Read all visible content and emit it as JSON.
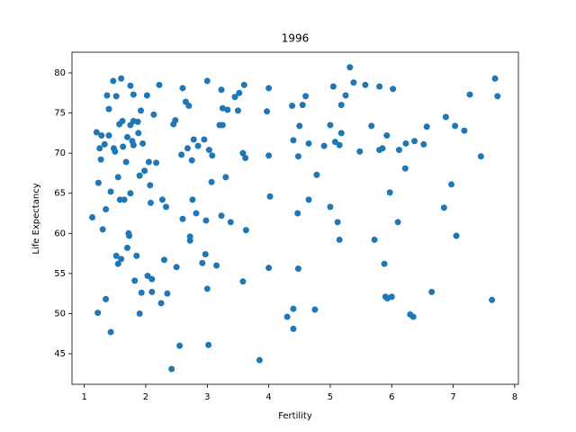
{
  "chart_data": {
    "type": "scatter",
    "title": "1996",
    "x_label": "Fertility",
    "y_label": "Life Expectancy",
    "color": "#1f77b4",
    "grid": false,
    "xlim": [
      0.8,
      8.06
    ],
    "ylim": [
      41.19,
      82.58
    ],
    "xticks": [
      1,
      2,
      3,
      4,
      5,
      6,
      7,
      8
    ],
    "yticks": [
      45,
      50,
      55,
      60,
      65,
      70,
      75,
      80
    ],
    "x": [
      1.13,
      1.2,
      1.22,
      1.23,
      1.25,
      1.27,
      1.28,
      1.3,
      1.33,
      1.35,
      1.35,
      1.37,
      1.4,
      1.4,
      1.43,
      1.43,
      1.47,
      1.48,
      1.5,
      1.52,
      1.52,
      1.55,
      1.55,
      1.57,
      1.58,
      1.6,
      1.6,
      1.62,
      1.63,
      1.65,
      1.68,
      1.7,
      1.7,
      1.72,
      1.73,
      1.75,
      1.75,
      1.75,
      1.78,
      1.8,
      1.8,
      1.8,
      1.82,
      1.85,
      1.87,
      1.88,
      1.9,
      1.9,
      1.92,
      1.93,
      1.95,
      1.98,
      2.02,
      2.03,
      2.05,
      2.07,
      2.08,
      2.1,
      2.1,
      2.13,
      2.17,
      2.22,
      2.25,
      2.27,
      2.3,
      2.33,
      2.35,
      2.42,
      2.45,
      2.48,
      2.5,
      2.55,
      2.58,
      2.6,
      2.6,
      2.65,
      2.68,
      2.7,
      2.72,
      2.72,
      2.75,
      2.76,
      2.78,
      2.82,
      2.85,
      2.92,
      2.95,
      2.97,
      2.98,
      3.0,
      3.0,
      3.02,
      3.03,
      3.07,
      3.08,
      3.15,
      3.2,
      3.23,
      3.23,
      3.25,
      3.25,
      3.3,
      3.33,
      3.38,
      3.45,
      3.5,
      3.52,
      3.58,
      3.58,
      3.6,
      3.62,
      3.63,
      3.85,
      3.97,
      4.0,
      4.0,
      4.02,
      4.0,
      4.3,
      4.38,
      4.4,
      4.4,
      4.4,
      4.47,
      4.48,
      4.48,
      4.5,
      4.55,
      4.6,
      4.65,
      4.65,
      4.75,
      4.78,
      4.9,
      5.0,
      5.0,
      5.05,
      5.08,
      5.12,
      5.15,
      5.15,
      5.18,
      5.18,
      5.25,
      5.32,
      5.38,
      5.48,
      5.57,
      5.67,
      5.72,
      5.8,
      5.8,
      5.85,
      5.88,
      5.9,
      5.92,
      5.93,
      5.97,
      6.0,
      6.02,
      6.1,
      6.12,
      6.22,
      6.23,
      6.3,
      6.35,
      6.37,
      6.52,
      6.57,
      6.65,
      6.85,
      6.88,
      6.97,
      7.03,
      7.05,
      7.18,
      7.27,
      7.45,
      7.63,
      7.68,
      7.72
    ],
    "values": [
      62.0,
      72.6,
      50.1,
      66.3,
      70.6,
      69.2,
      72.2,
      60.5,
      71.1,
      51.8,
      63.0,
      77.2,
      72.2,
      75.5,
      47.7,
      65.2,
      79.0,
      70.6,
      70.2,
      77.1,
      57.2,
      56.2,
      67.0,
      73.6,
      64.2,
      79.3,
      56.8,
      74.0,
      70.8,
      64.2,
      68.9,
      72.0,
      58.2,
      60.0,
      59.7,
      78.4,
      73.5,
      65.0,
      71.5,
      77.3,
      71.0,
      74.0,
      54.1,
      57.2,
      73.9,
      72.5,
      50.0,
      67.2,
      75.3,
      52.6,
      71.2,
      67.8,
      77.2,
      54.7,
      68.9,
      66.0,
      63.8,
      54.3,
      52.7,
      74.8,
      68.8,
      78.5,
      51.3,
      64.2,
      56.7,
      63.3,
      52.5,
      43.1,
      73.6,
      74.1,
      55.8,
      46.0,
      69.8,
      78.1,
      61.8,
      76.4,
      70.6,
      75.9,
      59.1,
      59.6,
      69.1,
      64.2,
      71.7,
      62.5,
      70.9,
      56.3,
      71.7,
      57.4,
      61.6,
      79.0,
      53.1,
      46.1,
      70.4,
      66.4,
      69.7,
      56.0,
      73.5,
      77.9,
      62.2,
      75.6,
      73.5,
      67.0,
      75.4,
      61.4,
      77.0,
      75.3,
      77.5,
      70.0,
      54.0,
      78.5,
      69.4,
      60.4,
      44.2,
      75.2,
      78.1,
      69.7,
      64.6,
      55.7,
      49.6,
      75.9,
      71.6,
      48.1,
      50.6,
      62.5,
      55.6,
      69.6,
      73.4,
      76.0,
      77.1,
      71.2,
      64.2,
      50.5,
      67.3,
      70.9,
      63.3,
      73.5,
      78.3,
      71.4,
      61.4,
      59.2,
      71.0,
      72.5,
      76.0,
      77.2,
      80.7,
      78.8,
      70.2,
      78.5,
      73.4,
      59.2,
      78.3,
      70.4,
      70.6,
      56.2,
      52.1,
      72.2,
      51.9,
      65.1,
      52.1,
      78.0,
      61.4,
      70.4,
      68.1,
      71.2,
      49.9,
      49.6,
      71.5,
      71.1,
      73.3,
      52.7,
      63.2,
      74.5,
      66.1,
      73.4,
      59.7,
      72.8,
      77.3,
      69.6,
      51.7,
      79.3,
      77.1
    ]
  }
}
